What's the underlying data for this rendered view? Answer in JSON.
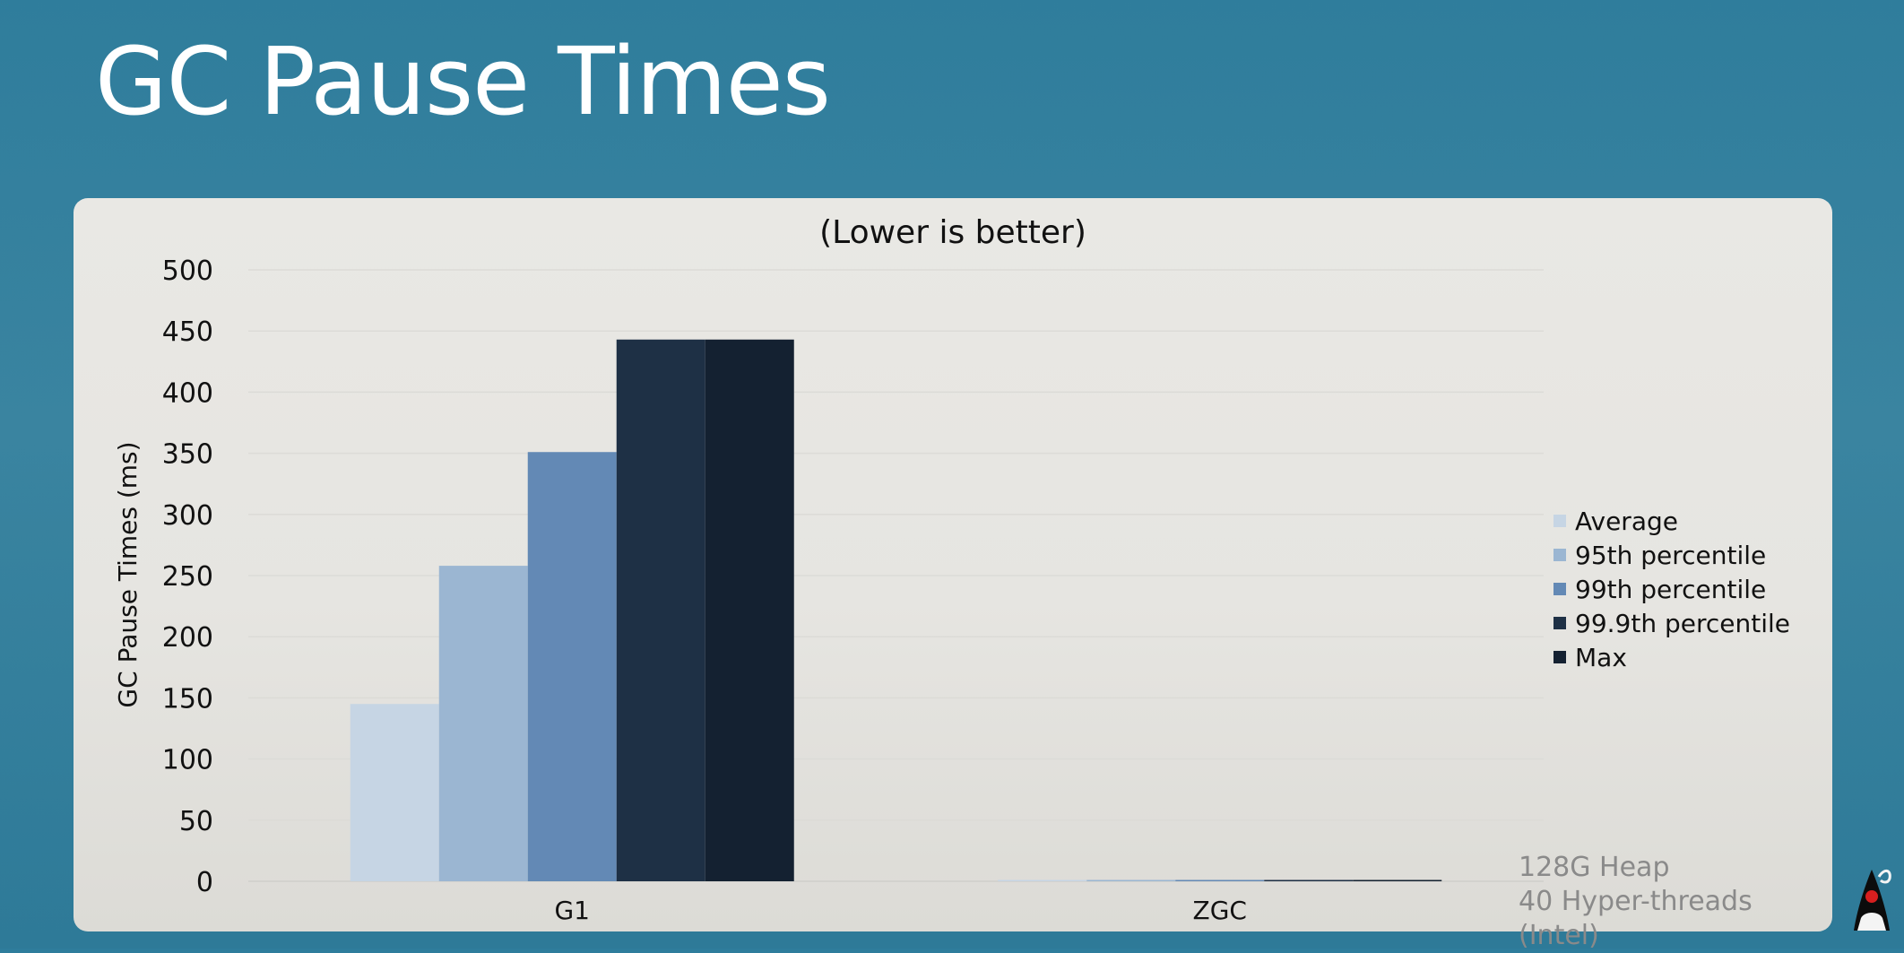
{
  "slide": {
    "title": "GC Pause Times",
    "footnote_line1": "128G Heap",
    "footnote_line2": "40 Hyper-threads (Intel)",
    "mascot_icon": "duke-mascot-icon"
  },
  "chart_data": {
    "type": "bar",
    "title": "(Lower is better)",
    "ylabel": "GC Pause Times (ms)",
    "xlabel": "",
    "categories": [
      "G1",
      "ZGC"
    ],
    "ylim": [
      0,
      500
    ],
    "yticks": [
      0,
      50,
      100,
      150,
      200,
      250,
      300,
      350,
      400,
      450,
      500
    ],
    "grid": true,
    "legend_position": "right",
    "series": [
      {
        "name": "Average",
        "values": [
          145,
          0.5
        ],
        "color": "#c6d5e4"
      },
      {
        "name": "95th percentile",
        "values": [
          258,
          1
        ],
        "color": "#9bb6d2"
      },
      {
        "name": "99th percentile",
        "values": [
          351,
          1
        ],
        "color": "#6389b5"
      },
      {
        "name": "99.9th percentile",
        "values": [
          443,
          1
        ],
        "color": "#1e3045"
      },
      {
        "name": "Max",
        "values": [
          443,
          1
        ],
        "color": "#142131"
      }
    ]
  }
}
